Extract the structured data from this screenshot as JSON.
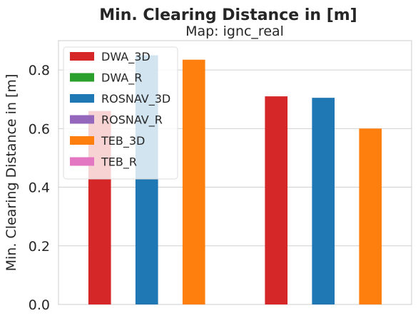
{
  "chart_data": {
    "type": "bar",
    "title": "Min. Clearing Distance in [m]",
    "subtitle": "Map: ignc_real",
    "xlabel": "",
    "ylabel": "Min. Clearing Distance in [m]",
    "ylim": [
      0,
      0.9
    ],
    "yticks": [
      0.0,
      0.2,
      0.4,
      0.6,
      0.8
    ],
    "ytick_labels": [
      "0.0",
      "0.2",
      "0.4",
      "0.6",
      "0.8"
    ],
    "grid": true,
    "legend_position": "top-left",
    "categories": [
      "",
      ""
    ],
    "series": [
      {
        "name": "DWA_3D",
        "color": "#d62728",
        "values": [
          0.66,
          0.71
        ]
      },
      {
        "name": "DWA_R",
        "color": "#2ca02c",
        "values": [
          null,
          null
        ]
      },
      {
        "name": "ROSNAV_3D",
        "color": "#1f77b4",
        "values": [
          0.85,
          0.705
        ]
      },
      {
        "name": "ROSNAV_R",
        "color": "#9467bd",
        "values": [
          null,
          null
        ]
      },
      {
        "name": "TEB_3D",
        "color": "#ff7f0e",
        "values": [
          0.835,
          0.6
        ]
      },
      {
        "name": "TEB_R",
        "color": "#e377c2",
        "values": [
          null,
          null
        ]
      }
    ]
  }
}
